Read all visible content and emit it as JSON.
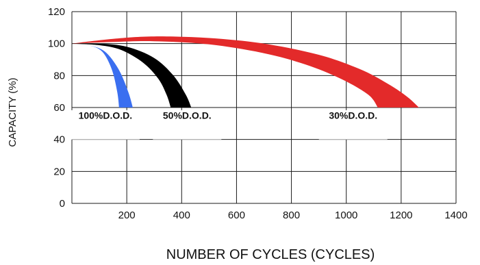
{
  "chart_data": {
    "type": "area",
    "xlabel": "NUMBER OF CYCLES (CYCLES)",
    "ylabel": "CAPACITY (%)",
    "xlim": [
      0,
      1400
    ],
    "ylim": [
      0,
      120
    ],
    "x_ticks": [
      "200",
      "400",
      "600",
      "800",
      "1000",
      "1200",
      "1400"
    ],
    "y_ticks": [
      "0",
      "20",
      "40",
      "60",
      "80",
      "100",
      "120"
    ],
    "grid": true,
    "series": [
      {
        "name": "100%D.O.D.",
        "color": "#3b6ff0",
        "upper": [
          [
            0,
            100
          ],
          [
            60,
            99
          ],
          [
            120,
            95
          ],
          [
            170,
            84
          ],
          [
            205,
            70
          ],
          [
            222,
            60
          ]
        ],
        "lower": [
          [
            0,
            100
          ],
          [
            60,
            99
          ],
          [
            110,
            95
          ],
          [
            145,
            84
          ],
          [
            165,
            70
          ],
          [
            172,
            60
          ]
        ]
      },
      {
        "name": "50%D.O.D.",
        "color": "#000000",
        "upper": [
          [
            0,
            100
          ],
          [
            100,
            100
          ],
          [
            200,
            98
          ],
          [
            300,
            91
          ],
          [
            370,
            80
          ],
          [
            415,
            68
          ],
          [
            435,
            60
          ]
        ],
        "lower": [
          [
            0,
            100
          ],
          [
            100,
            99
          ],
          [
            180,
            96
          ],
          [
            260,
            88
          ],
          [
            315,
            78
          ],
          [
            345,
            68
          ],
          [
            360,
            60
          ]
        ]
      },
      {
        "name": "30%D.O.D.",
        "color": "#e32a2a",
        "upper": [
          [
            0,
            100
          ],
          [
            150,
            103
          ],
          [
            300,
            104.5
          ],
          [
            500,
            103.5
          ],
          [
            700,
            100
          ],
          [
            900,
            93
          ],
          [
            1050,
            84
          ],
          [
            1150,
            75
          ],
          [
            1220,
            67
          ],
          [
            1265,
            60
          ]
        ],
        "lower": [
          [
            0,
            100
          ],
          [
            150,
            101
          ],
          [
            300,
            101.5
          ],
          [
            500,
            99.5
          ],
          [
            700,
            94
          ],
          [
            850,
            87
          ],
          [
            980,
            78
          ],
          [
            1080,
            68
          ],
          [
            1115,
            60
          ]
        ]
      }
    ]
  }
}
